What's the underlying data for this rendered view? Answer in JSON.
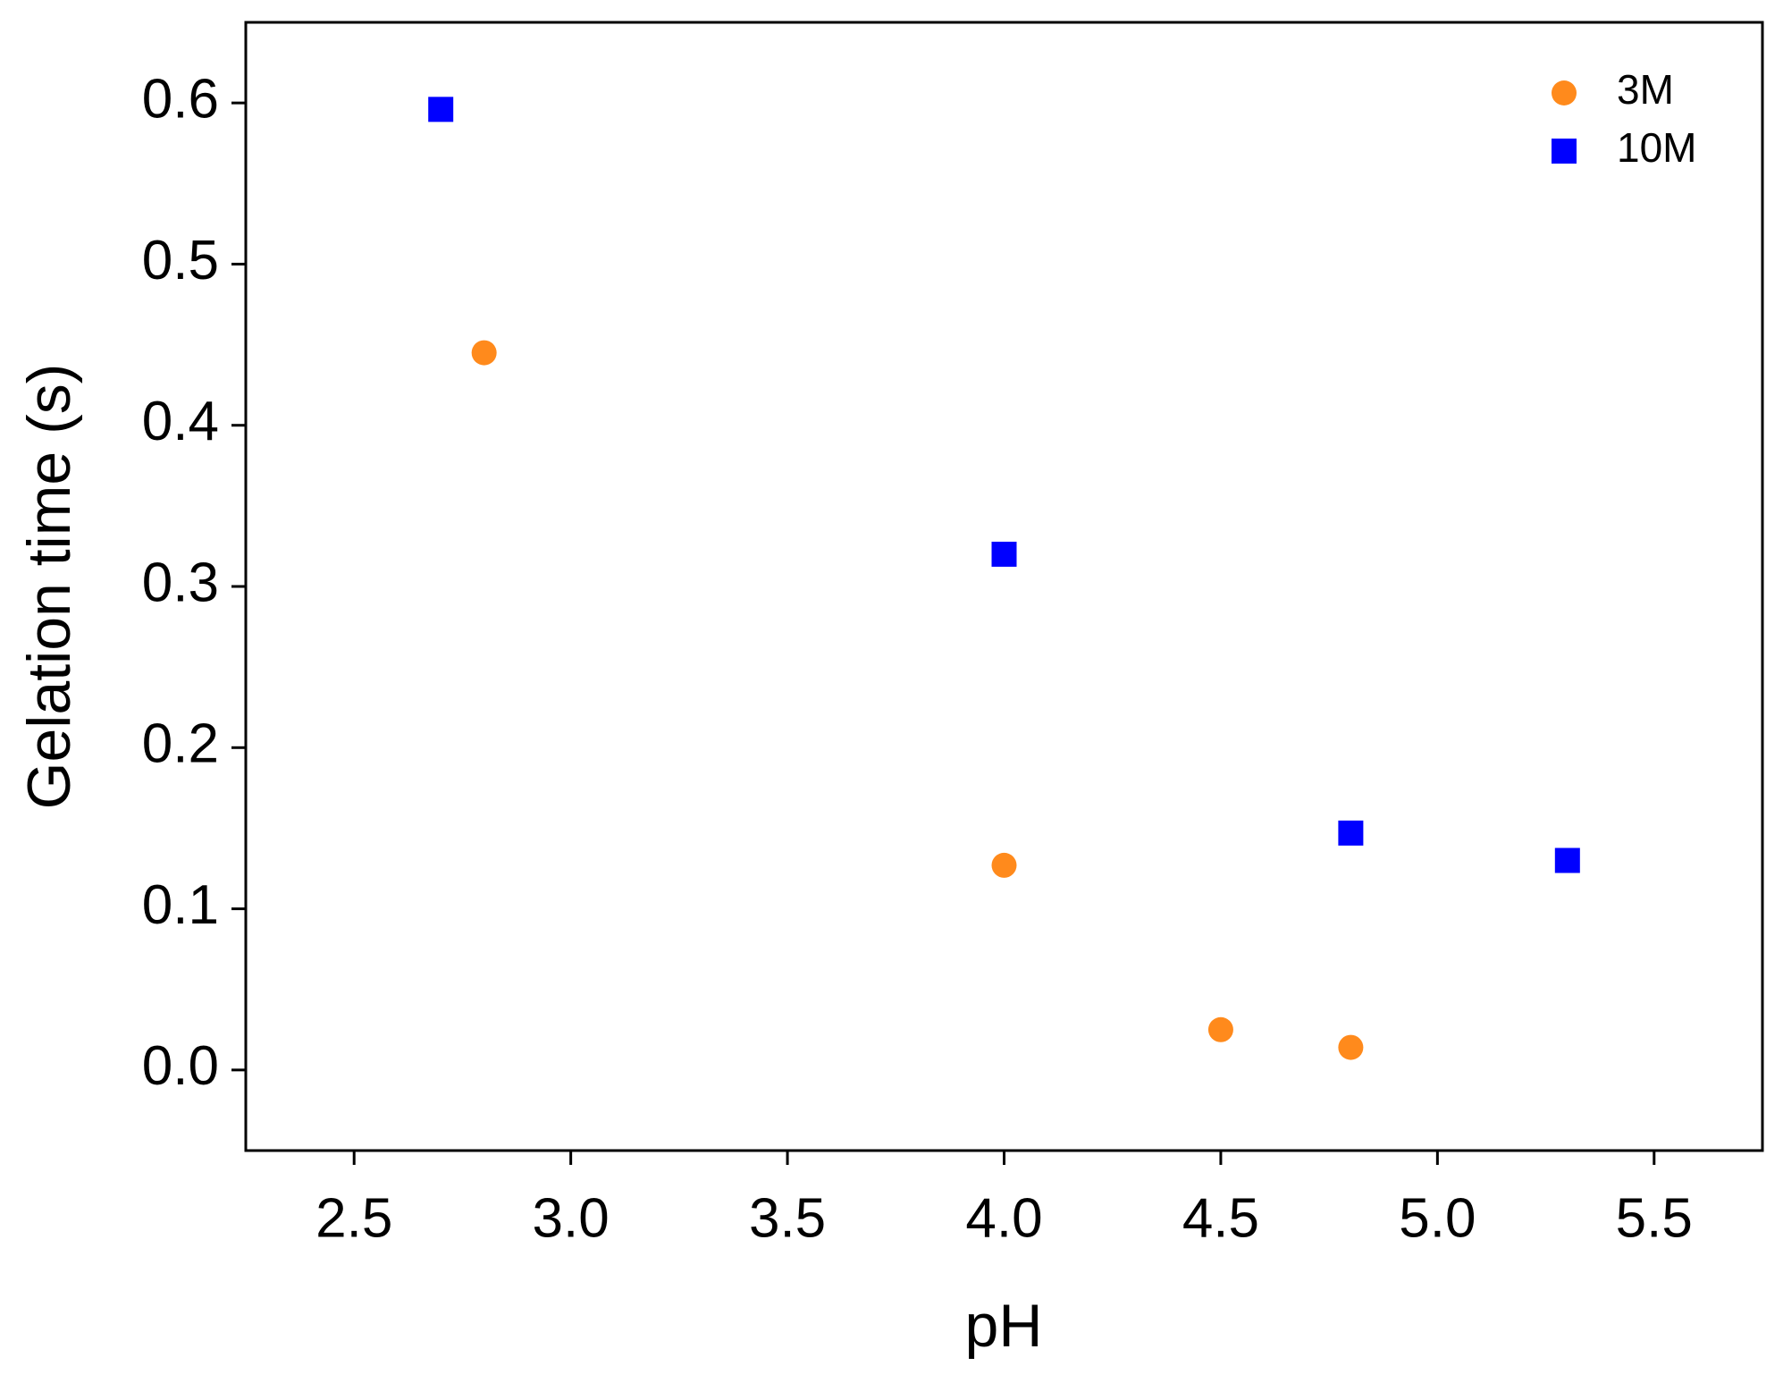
{
  "chart_data": {
    "type": "scatter",
    "x_label": "pH",
    "y_label": "Gelation time (s)",
    "xlim": [
      2.25,
      5.75
    ],
    "ylim": [
      -0.05,
      0.65
    ],
    "xticks": [
      2.5,
      {
        "value": 3,
        "label": "3.0"
      },
      3.5,
      {
        "value": 4,
        "label": "4.0"
      },
      4.5,
      {
        "value": 5,
        "label": "5.0"
      },
      5.5
    ],
    "yticks": [
      {
        "value": 0,
        "label": "0.0"
      },
      0.1,
      0.2,
      0.3,
      0.4,
      0.5,
      0.6
    ],
    "legend": "upper right",
    "series": [
      {
        "name": "3M",
        "color": "#ff8a1c",
        "marker": "circle",
        "x": [
          2.8,
          4.0,
          4.5,
          4.8
        ],
        "values": [
          0.445,
          0.127,
          0.025,
          0.014
        ]
      },
      {
        "name": "10M",
        "color": "#0000ff",
        "marker": "square",
        "x": [
          2.7,
          4.0,
          4.8,
          5.3
        ],
        "values": [
          0.596,
          0.32,
          0.147,
          0.13
        ]
      }
    ]
  }
}
